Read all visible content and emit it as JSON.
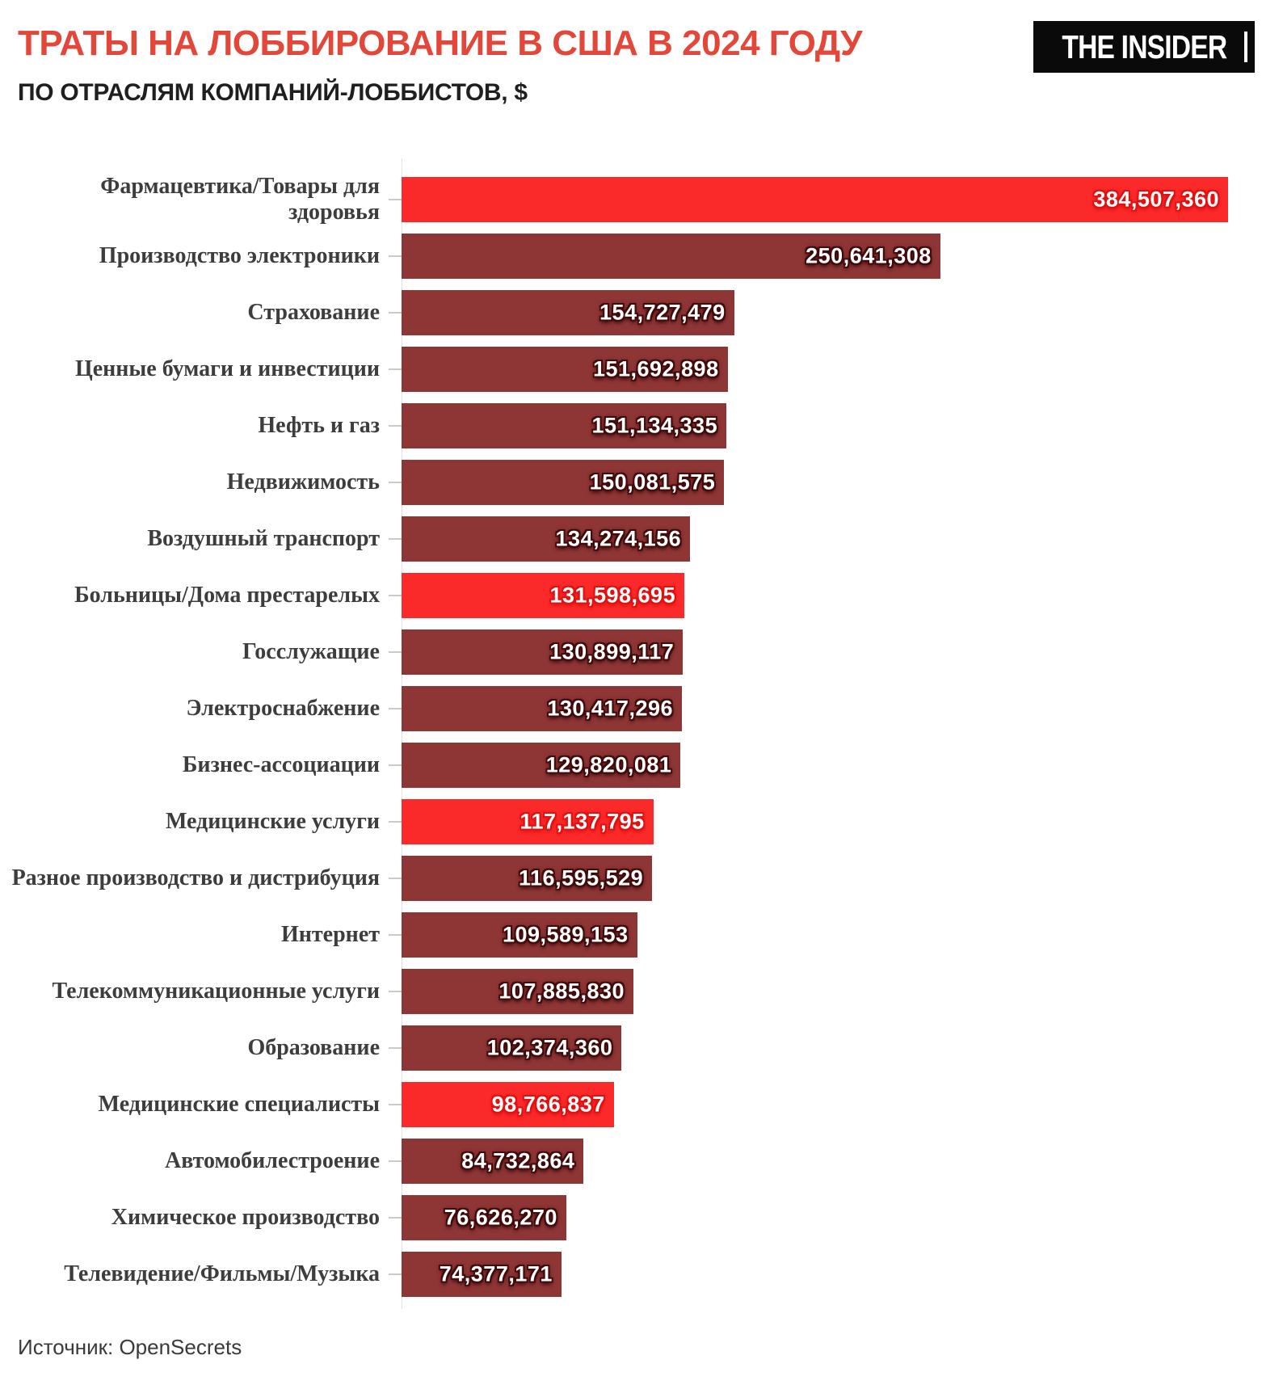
{
  "header": {
    "title": "ТРАТЫ НА ЛОББИРОВАНИЕ В США В 2024 ГОДУ",
    "subtitle": "ПО ОТРАСЛЯМ КОМПАНИЙ-ЛОББИСТОВ, $",
    "logo_text": "THE INSIDER"
  },
  "source_note": "Источник: OpenSecrets",
  "colors": {
    "title": "#e2473a",
    "subtitle": "#1f1f1f",
    "bar_default": "#8e3535",
    "bar_highlight": "#fb2a2a",
    "value_halo_default": "#3f0b0b",
    "value_halo_highlight": "#e21111",
    "category_label": "#3d3d3d",
    "axis": "#e3e3e3",
    "tick": "#c9c9c9"
  },
  "chart_data": {
    "type": "bar",
    "orientation": "horizontal",
    "title": "ТРАТЫ НА ЛОББИРОВАНИЕ В США В 2024 ГОДУ",
    "subtitle": "ПО ОТРАСЛЯМ КОМПАНИЙ-ЛОББИСТОВ, $",
    "unit": "$",
    "xlim": [
      0,
      384507360
    ],
    "grid": false,
    "legend": false,
    "source": "OpenSecrets",
    "categories": [
      "Фармацевтика/Товары для\nздоровья",
      "Производство электроники",
      "Страхование",
      "Ценные бумаги и инвестиции",
      "Нефть и газ",
      "Недвижимость",
      "Воздушный транспорт",
      "Больницы/Дома престарелых",
      "Госслужащие",
      "Электроснабжение",
      "Бизнес-ассоциации",
      "Медицинские услуги",
      "Разное производство и дистрибуция",
      "Интернет",
      "Телекоммуникационные услуги",
      "Образование",
      "Медицинские специалисты",
      "Автомобилестроение",
      "Химическое производство",
      "Телевидение/Фильмы/Музыка"
    ],
    "values": [
      384507360,
      250641308,
      154727479,
      151692898,
      151134335,
      150081575,
      134274156,
      131598695,
      130899117,
      130417296,
      129820081,
      117137795,
      116595529,
      109589153,
      107885830,
      102374360,
      98766837,
      84732864,
      76626270,
      74377171
    ],
    "value_labels": [
      "384,507,360",
      "250,641,308",
      "154,727,479",
      "151,692,898",
      "151,134,335",
      "150,081,575",
      "134,274,156",
      "131,598,695",
      "130,899,117",
      "130,417,296",
      "129,820,081",
      "117,137,795",
      "116,595,529",
      "109,589,153",
      "107,885,830",
      "102,374,360",
      "98,766,837",
      "84,732,864",
      "76,626,270",
      "74,377,171"
    ],
    "highlighted_indices": [
      0,
      7,
      11,
      16
    ]
  }
}
